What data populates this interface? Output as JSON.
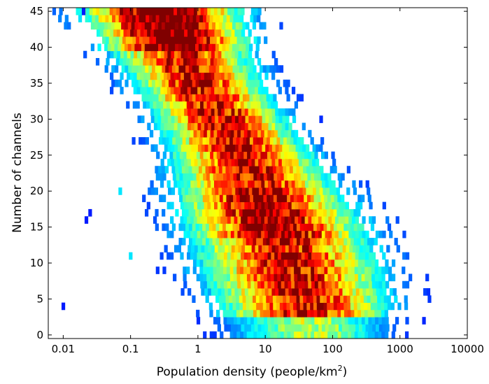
{
  "chart_data": {
    "type": "heatmap",
    "title": "",
    "xlabel": "Population density (people/km",
    "xlabel_superscript": "2",
    "xlabel_close": ")",
    "ylabel": "Number of channels",
    "x_scale": "log",
    "xlim": [
      0.006,
      10000
    ],
    "ylim": [
      -0.5,
      45.5
    ],
    "x_ticks": [
      0.01,
      0.1,
      1,
      10,
      100,
      1000,
      10000
    ],
    "x_tick_labels": [
      "0.01",
      "0.1",
      "1",
      "10",
      "100",
      "1000",
      "10000"
    ],
    "y_ticks": [
      0,
      5,
      10,
      15,
      20,
      25,
      30,
      35,
      40,
      45
    ],
    "y_tick_labels": [
      "0",
      "5",
      "10",
      "15",
      "20",
      "25",
      "30",
      "35",
      "40",
      "45"
    ],
    "grid": false,
    "colormap": "jet",
    "colormap_stops": [
      "#00008f",
      "#0000ff",
      "#0080ff",
      "#00ffff",
      "#80ff80",
      "#ffff00",
      "#ff8000",
      "#ff0000",
      "#800000"
    ],
    "density_ridge": [
      {
        "channels": 45,
        "log10_density_center": -0.55
      },
      {
        "channels": 40,
        "log10_density_center": -0.3
      },
      {
        "channels": 35,
        "log10_density_center": 0.0
      },
      {
        "channels": 30,
        "log10_density_center": 0.35
      },
      {
        "channels": 25,
        "log10_density_center": 0.65
      },
      {
        "channels": 20,
        "log10_density_center": 0.9
      },
      {
        "channels": 15,
        "log10_density_center": 1.15
      },
      {
        "channels": 10,
        "log10_density_center": 1.35
      },
      {
        "channels": 5,
        "log10_density_center": 1.55
      },
      {
        "channels": 1,
        "log10_density_center": 1.65
      }
    ],
    "outliers": [
      {
        "density": 0.01,
        "channels": 4
      },
      {
        "density": 0.022,
        "channels": 16
      },
      {
        "density": 0.025,
        "channels": 17
      },
      {
        "density": 0.02,
        "channels": 45
      },
      {
        "density": 0.07,
        "channels": 20
      },
      {
        "density": 0.1,
        "channels": 11
      }
    ]
  }
}
